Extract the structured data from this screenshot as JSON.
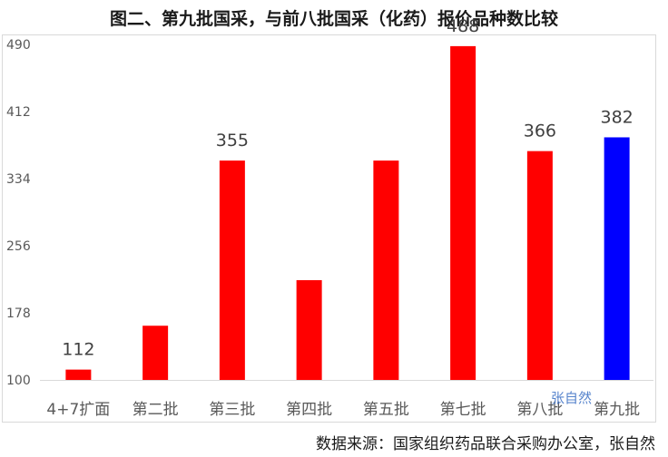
{
  "title": "图二、第九批国采，与前八批国采（化药）报价品种数比较",
  "source": "数据来源：国家组织药品联合采购办公室，张自然",
  "watermark": "张自然",
  "chart_data": {
    "type": "bar",
    "categories": [
      "4+7扩面",
      "第二批",
      "第三批",
      "第四批",
      "第五批",
      "第七批",
      "第八批",
      "第九批"
    ],
    "values": [
      112,
      163,
      355,
      216,
      355,
      488,
      366,
      382
    ],
    "data_labels": [
      "112",
      "",
      "355",
      "",
      "",
      "488",
      "366",
      "382"
    ],
    "colors": [
      "#ff0000",
      "#ff0000",
      "#ff0000",
      "#ff0000",
      "#ff0000",
      "#ff0000",
      "#ff0000",
      "#0000ff"
    ],
    "yticks": [
      100,
      178,
      256,
      334,
      412,
      490
    ],
    "ylim": [
      100,
      490
    ],
    "grid": false,
    "legend": "none"
  }
}
